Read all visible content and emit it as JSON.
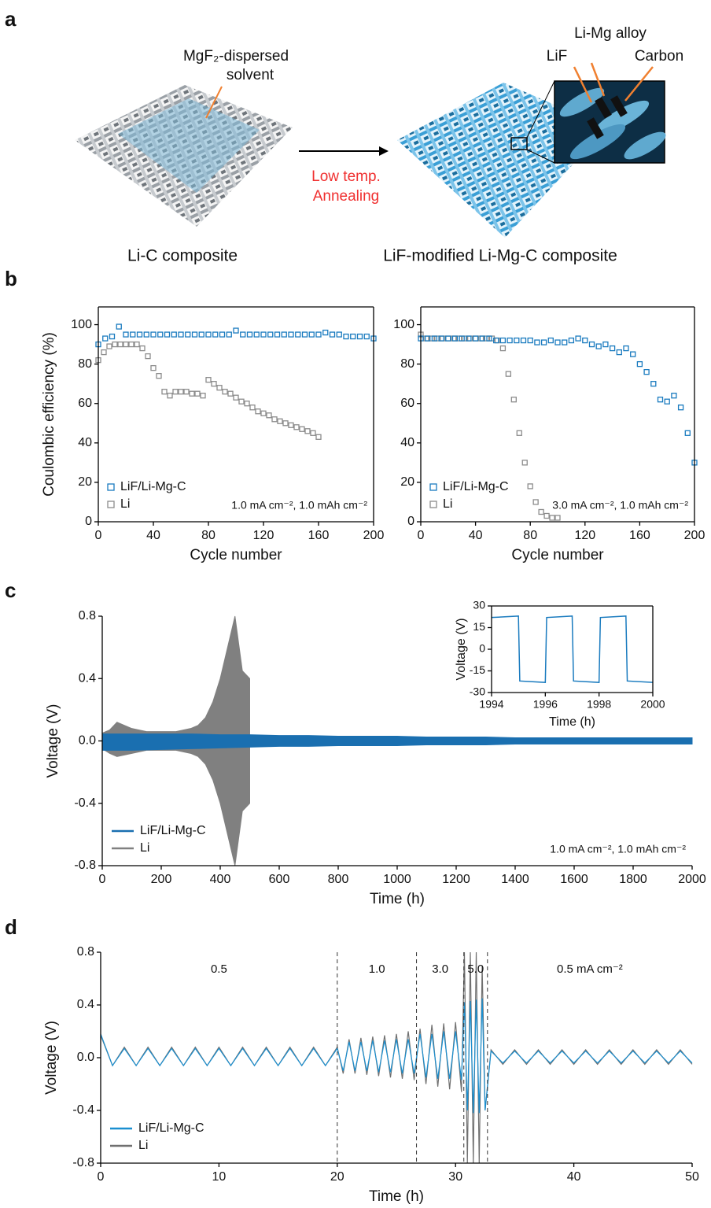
{
  "panels": [
    "a",
    "b",
    "c",
    "d"
  ],
  "diagram": {
    "solvent_label": [
      "MgF₂-dispersed",
      "solvent"
    ],
    "process": [
      "Low temp.",
      "Annealing"
    ],
    "left_caption": "Li-C composite",
    "right_caption": "LiF-modified Li-Mg-C composite",
    "zoom_labels": [
      "Li-Mg alloy",
      "LiF",
      "Carbon"
    ]
  },
  "chart_data": [
    {
      "type": "scatter",
      "xlabel": "Cycle number",
      "ylabel": "Coulombic efficiency (%)",
      "xlim": [
        0,
        200
      ],
      "ylim": [
        0,
        109
      ],
      "xticks": [
        0,
        40,
        80,
        120,
        160,
        200
      ],
      "yticks": [
        0,
        20,
        40,
        60,
        80,
        100
      ],
      "box": true,
      "legend": "lower left",
      "annotation": "1.0 mA cm⁻², 1.0 mAh cm⁻²",
      "series": [
        {
          "name": "LiF/Li-Mg-C",
          "color": "#1a7bbf",
          "x": [
            0,
            5,
            10,
            15,
            20,
            25,
            30,
            35,
            40,
            45,
            50,
            55,
            60,
            65,
            70,
            75,
            80,
            85,
            90,
            95,
            100,
            105,
            110,
            115,
            120,
            125,
            130,
            135,
            140,
            145,
            150,
            155,
            160,
            165,
            170,
            175,
            180,
            185,
            190,
            195,
            200
          ],
          "values": [
            90,
            93,
            94,
            99,
            95,
            95,
            95,
            95,
            95,
            95,
            95,
            95,
            95,
            95,
            95,
            95,
            95,
            95,
            95,
            95,
            97,
            95,
            95,
            95,
            95,
            95,
            95,
            95,
            95,
            95,
            95,
            95,
            95,
            96,
            95,
            95,
            94,
            94,
            94,
            94,
            93
          ]
        },
        {
          "name": "Li",
          "color": "#8c8c8c",
          "x": [
            0,
            4,
            8,
            12,
            16,
            20,
            24,
            28,
            32,
            36,
            40,
            44,
            48,
            52,
            56,
            60,
            64,
            68,
            72,
            76,
            80,
            84,
            88,
            92,
            96,
            100,
            104,
            108,
            112,
            116,
            120,
            124,
            128,
            132,
            136,
            140,
            144,
            148,
            152,
            156,
            160
          ],
          "values": [
            82,
            86,
            89,
            90,
            90,
            90,
            90,
            90,
            88,
            84,
            78,
            74,
            66,
            64,
            66,
            66,
            66,
            65,
            65,
            64,
            72,
            70,
            68,
            66,
            65,
            63,
            61,
            60,
            58,
            56,
            55,
            54,
            52,
            51,
            50,
            49,
            48,
            47,
            46,
            45,
            43
          ]
        }
      ]
    },
    {
      "type": "scatter",
      "xlabel": "Cycle number",
      "xlim": [
        0,
        200
      ],
      "ylim": [
        0,
        109
      ],
      "xticks": [
        0,
        40,
        80,
        120,
        160,
        200
      ],
      "yticks": [
        0,
        20,
        40,
        60,
        80,
        100
      ],
      "box": true,
      "legend": "lower left",
      "annotation": "3.0 mA cm⁻², 1.0 mAh cm⁻²",
      "series": [
        {
          "name": "LiF/Li-Mg-C",
          "color": "#1a7bbf",
          "x": [
            0,
            5,
            10,
            15,
            20,
            25,
            30,
            35,
            40,
            45,
            50,
            55,
            60,
            65,
            70,
            75,
            80,
            85,
            90,
            95,
            100,
            105,
            110,
            115,
            120,
            125,
            130,
            135,
            140,
            145,
            150,
            155,
            160,
            165,
            170,
            175,
            180,
            185,
            190,
            195,
            200
          ],
          "values": [
            93,
            93,
            93,
            93,
            93,
            93,
            93,
            93,
            93,
            93,
            93,
            92,
            92,
            92,
            92,
            92,
            92,
            91,
            91,
            92,
            91,
            91,
            92,
            93,
            92,
            90,
            89,
            90,
            88,
            86,
            88,
            85,
            80,
            76,
            70,
            62,
            61,
            64,
            58,
            45,
            30
          ]
        },
        {
          "name": "Li",
          "color": "#8c8c8c",
          "x": [
            0,
            4,
            8,
            12,
            16,
            20,
            24,
            28,
            32,
            36,
            40,
            44,
            48,
            52,
            56,
            60,
            64,
            68,
            72,
            76,
            80,
            84,
            88,
            92,
            96,
            100
          ],
          "values": [
            95,
            93,
            93,
            93,
            93,
            93,
            93,
            93,
            93,
            93,
            93,
            93,
            93,
            93,
            92,
            88,
            75,
            62,
            45,
            30,
            18,
            10,
            5,
            3,
            2,
            2
          ]
        }
      ]
    },
    {
      "type": "area",
      "xlabel": "Time (h)",
      "ylabel": "Voltage (V)",
      "xlim": [
        0,
        2000
      ],
      "ylim": [
        -0.8,
        0.8
      ],
      "xticks": [
        0,
        200,
        400,
        600,
        800,
        1000,
        1200,
        1400,
        1600,
        1800,
        2000
      ],
      "yticks": [
        -0.8,
        -0.4,
        {
          "value": 0,
          "label": "0.0"
        },
        0.4,
        0.8
      ],
      "box": false,
      "legend": "lower left",
      "annotation": "1.0 mA cm⁻², 1.0 mAh cm⁻²",
      "series": [
        {
          "name": "LiF/Li-Mg-C",
          "color": "#1a6fb0",
          "x": [
            0,
            100,
            200,
            300,
            400,
            500,
            600,
            700,
            800,
            900,
            1000,
            1100,
            1200,
            1300,
            1400,
            1500,
            1600,
            1700,
            1800,
            1900,
            2000
          ],
          "values": [
            0.045,
            0.045,
            0.045,
            0.045,
            0.04,
            0.04,
            0.035,
            0.035,
            0.03,
            0.03,
            0.03,
            0.025,
            0.025,
            0.025,
            0.02,
            0.02,
            0.02,
            0.02,
            0.02,
            0.02,
            0.02
          ],
          "lower": [
            -0.06,
            -0.06,
            -0.055,
            -0.05,
            -0.045,
            -0.04,
            -0.035,
            -0.035,
            -0.03,
            -0.03,
            -0.03,
            -0.025,
            -0.025,
            -0.025,
            -0.02,
            -0.02,
            -0.02,
            -0.02,
            -0.02,
            -0.02,
            -0.02
          ]
        },
        {
          "name": "Li",
          "color": "#808080",
          "x": [
            0,
            25,
            50,
            75,
            100,
            125,
            150,
            175,
            200,
            225,
            250,
            275,
            300,
            325,
            350,
            375,
            400,
            425,
            450,
            475,
            500
          ],
          "values": [
            0.05,
            0.07,
            0.12,
            0.1,
            0.08,
            0.07,
            0.06,
            0.06,
            0.06,
            0.06,
            0.06,
            0.07,
            0.08,
            0.1,
            0.15,
            0.25,
            0.4,
            0.6,
            0.8,
            0.45,
            0.4
          ],
          "lower": [
            -0.05,
            -0.08,
            -0.1,
            -0.09,
            -0.08,
            -0.07,
            -0.06,
            -0.06,
            -0.06,
            -0.06,
            -0.06,
            -0.07,
            -0.08,
            -0.1,
            -0.15,
            -0.25,
            -0.4,
            -0.6,
            -0.8,
            -0.45,
            -0.4
          ]
        }
      ]
    },
    {
      "type": "line",
      "xlabel": "Time (h)",
      "ylabel": "Voltage (V)",
      "xlim": [
        1994,
        2000
      ],
      "ylim": [
        -30,
        30
      ],
      "xticks": [
        1994,
        1996,
        1998,
        2000
      ],
      "yticks": [
        -30,
        -15,
        0,
        15,
        30
      ],
      "box": true,
      "series": [
        {
          "color": "#1a7bbf",
          "x": [
            1994,
            1995,
            1995.05,
            1996,
            1996.05,
            1997,
            1997.05,
            1998,
            1998.05,
            1999,
            1999.05,
            2000
          ],
          "values": [
            22,
            23,
            -22,
            -23,
            22,
            23,
            -22,
            -23,
            22,
            23,
            -22,
            -23
          ]
        }
      ]
    },
    {
      "type": "line",
      "xlabel": "Time (h)",
      "ylabel": "Voltage (V)",
      "xlim": [
        0,
        50
      ],
      "ylim": [
        -0.8,
        0.8
      ],
      "xticks": [
        0,
        10,
        20,
        30,
        40,
        50
      ],
      "yticks": [
        -0.8,
        -0.4,
        {
          "value": 0,
          "label": "0.0"
        },
        0.4,
        0.8
      ],
      "box": false,
      "legend": "lower left",
      "dividers": [
        20,
        26.7,
        30.7,
        32.7
      ],
      "regions": [
        "0.5",
        "1.0",
        "3.0",
        "5.0",
        "0.5 mA cm⁻²"
      ],
      "x": [
        0,
        1,
        2,
        3,
        4,
        5,
        6,
        7,
        8,
        9,
        10,
        11,
        12,
        13,
        14,
        15,
        16,
        17,
        18,
        19,
        20,
        20.5,
        21,
        21.5,
        22,
        22.5,
        23,
        23.5,
        24,
        24.5,
        25,
        25.5,
        26,
        26.5,
        27,
        27.5,
        28,
        28.5,
        29,
        29.5,
        30,
        30.5,
        30.75,
        31,
        31.25,
        31.5,
        31.75,
        32,
        32.25,
        32.5,
        33,
        34,
        35,
        36,
        37,
        38,
        39,
        40,
        41,
        42,
        43,
        44,
        45,
        46,
        47,
        48,
        49,
        50
      ],
      "series": [
        {
          "name": "LiF/Li-Mg-C",
          "color": "#1a8fd0",
          "values": [
            0.18,
            -0.06,
            0.07,
            -0.06,
            0.07,
            -0.06,
            0.07,
            -0.06,
            0.07,
            -0.06,
            0.07,
            -0.06,
            0.07,
            -0.06,
            0.07,
            -0.06,
            0.07,
            -0.06,
            0.07,
            -0.06,
            0.07,
            -0.1,
            0.12,
            -0.1,
            0.12,
            -0.1,
            0.13,
            -0.11,
            0.13,
            -0.11,
            0.14,
            -0.12,
            0.14,
            -0.12,
            0.18,
            -0.15,
            0.18,
            -0.16,
            0.2,
            -0.16,
            0.2,
            -0.17,
            0.42,
            -0.4,
            0.43,
            -0.42,
            0.44,
            -0.42,
            0.45,
            -0.4,
            0.05,
            -0.04,
            0.05,
            -0.04,
            0.05,
            -0.04,
            0.05,
            -0.04,
            0.05,
            -0.04,
            0.05,
            -0.04,
            0.05,
            -0.04,
            0.05,
            -0.04,
            0.05,
            -0.04
          ]
        },
        {
          "name": "Li",
          "color": "#707070",
          "values": [
            0.17,
            -0.06,
            0.08,
            -0.06,
            0.08,
            -0.06,
            0.08,
            -0.06,
            0.08,
            -0.06,
            0.08,
            -0.06,
            0.08,
            -0.06,
            0.08,
            -0.06,
            0.08,
            -0.06,
            0.08,
            -0.06,
            0.08,
            -0.12,
            0.14,
            -0.12,
            0.15,
            -0.13,
            0.16,
            -0.14,
            0.17,
            -0.15,
            0.18,
            -0.16,
            0.2,
            -0.17,
            0.22,
            -0.2,
            0.25,
            -0.22,
            0.26,
            -0.24,
            0.27,
            -0.26,
            0.8,
            -0.8,
            0.8,
            -0.8,
            0.8,
            -0.8,
            0.7,
            -0.4,
            0.06,
            -0.05,
            0.06,
            -0.05,
            0.06,
            -0.05,
            0.06,
            -0.05,
            0.06,
            -0.05,
            0.06,
            -0.05,
            0.06,
            -0.05,
            0.06,
            -0.05,
            0.06,
            -0.05
          ]
        }
      ]
    }
  ]
}
